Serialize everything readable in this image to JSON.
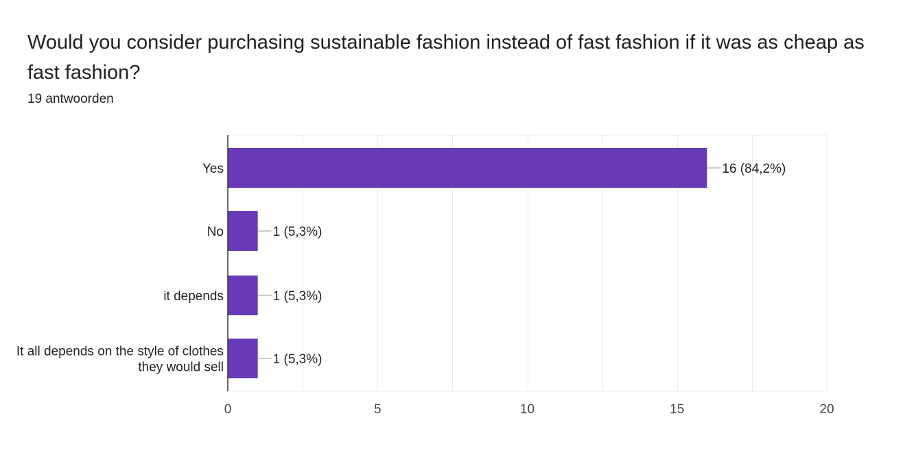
{
  "question": {
    "title": "Would you consider purchasing sustainable fashion instead of fast fashion if it was as cheap as fast fashion?",
    "response_count": "19 antwoorden"
  },
  "colors": {
    "bar": "#673ab7",
    "grid": "#ebebeb",
    "axis": "#333333",
    "leader": "#999999"
  },
  "chart_data": {
    "type": "bar",
    "orientation": "horizontal",
    "categories": [
      [
        "Yes"
      ],
      [
        "No"
      ],
      [
        "it depends"
      ],
      [
        "It all depends on the style of clothes",
        "they would sell"
      ]
    ],
    "values": [
      16,
      1,
      1,
      1
    ],
    "data_labels": [
      "16 (84,2%)",
      "1 (5,3%)",
      "1 (5,3%)",
      "1 (5,3%)"
    ],
    "xlim": [
      0,
      20
    ],
    "xticks": [
      0,
      5,
      10,
      15,
      20
    ],
    "grid": true,
    "title": "",
    "xlabel": "",
    "ylabel": ""
  }
}
